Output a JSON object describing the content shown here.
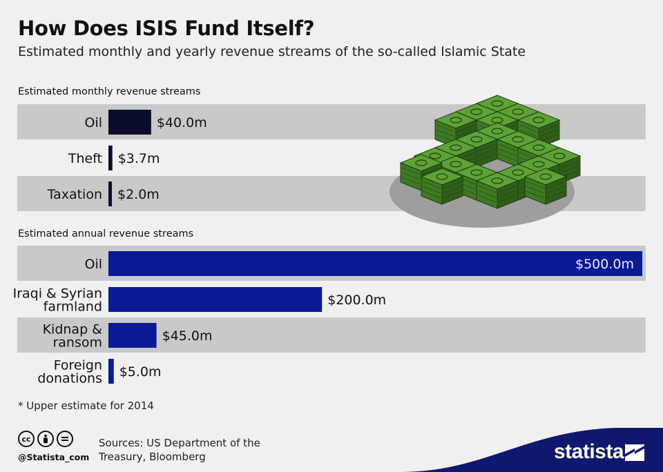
{
  "header": {
    "title": "How Does ISIS Fund Itself?",
    "subtitle": "Estimated monthly and yearly revenue streams of the so-called Islamic State"
  },
  "chart_data": [
    {
      "type": "bar",
      "orientation": "horizontal",
      "title": "Estimated monthly revenue streams",
      "categories": [
        "Oil",
        "Theft",
        "Taxation"
      ],
      "values": [
        40.0,
        3.7,
        2.0
      ],
      "value_labels": [
        "$40.0m",
        "$3.7m",
        "$2.0m"
      ],
      "xlim": [
        0,
        500
      ],
      "bar_color": "#0b0e2a",
      "row_stripe_color": "#c9c9c9"
    },
    {
      "type": "bar",
      "orientation": "horizontal",
      "title": "Estimated annual revenue streams",
      "categories": [
        "Oil",
        "Iraqi & Syrian farmland",
        "Kidnap & ransom",
        "Foreign donations"
      ],
      "category_lines": [
        [
          "Oil"
        ],
        [
          "Iraqi & Syrian",
          "farmland"
        ],
        [
          "Kidnap &",
          "ransom"
        ],
        [
          "Foreign",
          "donations"
        ]
      ],
      "values": [
        500.0,
        200.0,
        45.0,
        5.0
      ],
      "value_labels": [
        "$500.0m",
        "$200.0m",
        "$45.0m",
        "$5.0m"
      ],
      "xlim": [
        0,
        500
      ],
      "bar_color": "#0a1a96",
      "row_stripe_color": "#c9c9c9"
    }
  ],
  "illustration": {
    "icon": "money-stacks-icon",
    "money_color": "#3d7a22",
    "plate_color": "#9e9e9e"
  },
  "footer": {
    "footnote": "* Upper estimate for 2014",
    "license_icons": [
      "cc",
      "by",
      "="
    ],
    "handle": "@Statista_com",
    "sources_line1": "Sources: US Department of the",
    "sources_line2": "Treasury, Bloomberg",
    "brand": "statista",
    "brand_color": "#10186e"
  }
}
